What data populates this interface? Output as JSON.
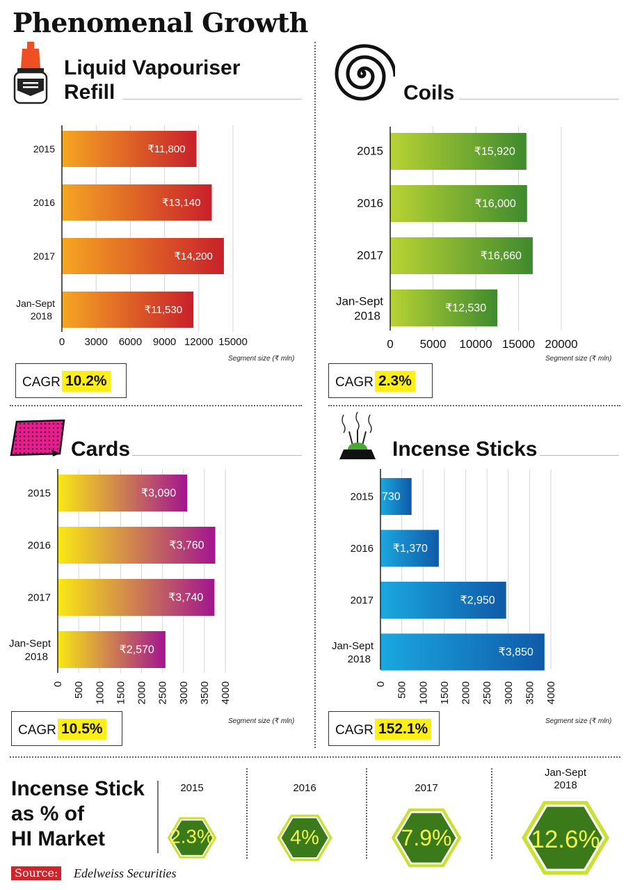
{
  "page_title": "Phenomenal Growth",
  "colors": {
    "highlight": "#ffef14",
    "source_red": "#d0232a",
    "hex_green": "#3a7a1a",
    "hex_border": "#c9e034"
  },
  "chart_data": [
    {
      "id": "liquid",
      "type": "bar",
      "orientation": "horizontal",
      "title_line1": "Liquid Vapouriser",
      "title_line2": "Refill",
      "categories": [
        "2015",
        "2016",
        "2017",
        "Jan-Sept|2018"
      ],
      "values": [
        11800,
        13140,
        14200,
        11530
      ],
      "value_labels": [
        "₹11,800",
        "₹13,140",
        "₹14,200",
        "₹11,530"
      ],
      "xticks": [
        0,
        3000,
        6000,
        9000,
        12000,
        15000
      ],
      "xlim": [
        0,
        15000
      ],
      "xlabel": "Segment size (₹ mln)",
      "gradient": [
        "#f5a623",
        "#c8202a"
      ],
      "cagr_label": "CAGR",
      "cagr_value": "10.2%"
    },
    {
      "id": "coils",
      "type": "bar",
      "orientation": "horizontal",
      "title": "Coils",
      "categories": [
        "2015",
        "2016",
        "2017",
        "Jan-Sept|2018"
      ],
      "values": [
        15920,
        16000,
        16660,
        12530
      ],
      "value_labels": [
        "₹15,920",
        "₹16,000",
        "₹16,660",
        "₹12,530"
      ],
      "xticks": [
        0,
        5000,
        10000,
        15000,
        20000
      ],
      "xlim": [
        0,
        20000
      ],
      "xlabel": "Segment size (₹ mln)",
      "gradient": [
        "#b8d334",
        "#3f8a2e"
      ],
      "cagr_label": "CAGR",
      "cagr_value": "2.3%"
    },
    {
      "id": "cards",
      "type": "bar",
      "orientation": "horizontal",
      "title": "Cards",
      "categories": [
        "2015",
        "2016",
        "2017",
        "Jan-Sept|2018"
      ],
      "values": [
        3090,
        3760,
        3740,
        2570
      ],
      "value_labels": [
        "₹3,090",
        "₹3,760",
        "₹3,740",
        "₹2,570"
      ],
      "xticks": [
        0,
        500,
        1000,
        1500,
        2000,
        2500,
        3000,
        3500,
        4000
      ],
      "xlim": [
        0,
        4000
      ],
      "xlabel": "Segment size (₹ mln)",
      "gradient": [
        "#f9e814",
        "#a2158f"
      ],
      "cagr_label": "CAGR",
      "cagr_value": "10.5%"
    },
    {
      "id": "incense",
      "type": "bar",
      "orientation": "horizontal",
      "title": "Incense Sticks",
      "categories": [
        "2015",
        "2016",
        "2017",
        "Jan-Sept|2018"
      ],
      "values": [
        730,
        1370,
        2950,
        3850
      ],
      "value_labels": [
        "₹730",
        "₹1,370",
        "₹2,950",
        "₹3,850"
      ],
      "xticks": [
        0,
        500,
        1000,
        1500,
        2000,
        2500,
        3000,
        3500,
        4000
      ],
      "xlim": [
        0,
        4000
      ],
      "xlabel": "Segment size (₹ mln)",
      "gradient": [
        "#1aa8e0",
        "#0f5aa8"
      ],
      "cagr_label": "CAGR",
      "cagr_value": "152.1%"
    }
  ],
  "share": {
    "title_lines": [
      "Incense Stick",
      "as % of",
      "HI Market"
    ],
    "items": [
      {
        "year": "2015",
        "value": "2.3%",
        "percent": 2.3
      },
      {
        "year": "2016",
        "value": "4%",
        "percent": 4
      },
      {
        "year": "2017",
        "value": "7.9%",
        "percent": 7.9
      },
      {
        "year": "Jan-Sept|2018",
        "value": "12.6%",
        "percent": 12.6
      }
    ]
  },
  "source": {
    "label": "Source:",
    "text": "Edelweiss Securities"
  }
}
